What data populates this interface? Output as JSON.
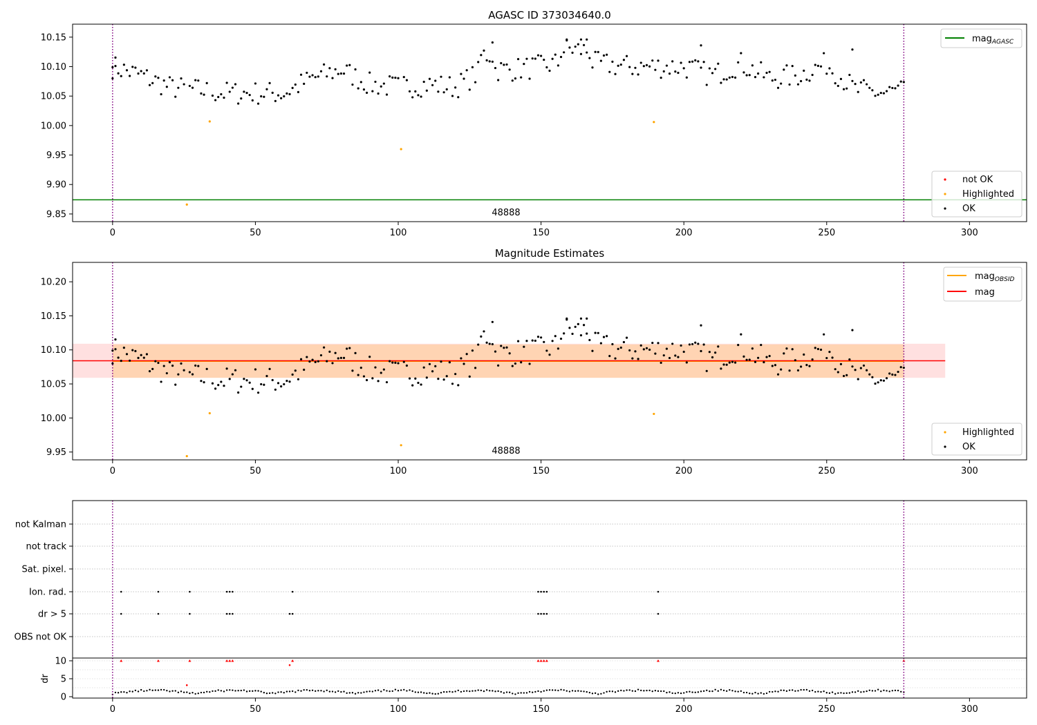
{
  "chart_data": [
    {
      "type": "scatter",
      "title": "AGASC ID 373034640.0",
      "xlabel": "",
      "ylabel": "",
      "xlim": [
        -14,
        320
      ],
      "ylim": [
        9.837,
        10.172
      ],
      "xticks": [
        0,
        50,
        100,
        150,
        200,
        250,
        300
      ],
      "yticks": [
        9.85,
        9.9,
        9.95,
        10.0,
        10.05,
        10.1,
        10.15
      ],
      "grid": false,
      "vlines": [
        0,
        277
      ],
      "hline": {
        "name": "mag_AGASC",
        "y": 9.874,
        "color": "#008000"
      },
      "annotation": {
        "text": "48888",
        "x": 138.5,
        "y": 9.85
      },
      "legend_top": {
        "placement": "top-right",
        "entries": [
          {
            "label": "mag",
            "sub": "AGASC",
            "color": "#008000"
          }
        ]
      },
      "legend_bottom": {
        "placement": "bottom-right",
        "entries": [
          {
            "label": "not OK",
            "color": "#ff0000"
          },
          {
            "label": "Highlighted",
            "color": "#ffa500"
          },
          {
            "label": "OK",
            "color": "#000000"
          }
        ]
      },
      "highlighted": [
        [
          26,
          9.866
        ],
        [
          34,
          10.007
        ],
        [
          101,
          9.96
        ],
        [
          189.5,
          10.006
        ]
      ]
    },
    {
      "type": "scatter",
      "title": "Magnitude Estimates",
      "xlabel": "",
      "ylabel": "",
      "xlim": [
        -14,
        320
      ],
      "ylim": [
        9.9385,
        10.2285
      ],
      "xticks": [
        0,
        50,
        100,
        150,
        200,
        250,
        300
      ],
      "yticks": [
        9.95,
        10.0,
        10.05,
        10.1,
        10.15,
        10.2
      ],
      "grid": false,
      "vlines": [
        0,
        277
      ],
      "mag_line": {
        "name": "mag",
        "y": 10.084,
        "band": [
          10.059,
          10.109
        ],
        "x": [
          -14,
          291.5
        ],
        "color": "#ff0000"
      },
      "mag_obsid": {
        "name": "mag_OBSID",
        "y": 10.0835,
        "band": [
          10.059,
          10.108
        ],
        "x": [
          0,
          277
        ],
        "color": "#ffa500"
      },
      "annotation": {
        "text": "48888",
        "x": 138.5,
        "y": 9.951
      },
      "legend_top": {
        "placement": "top-right",
        "entries": [
          {
            "label": "mag",
            "sub": "OBSID",
            "color": "#ffa500"
          },
          {
            "label": "mag",
            "sub": "",
            "color": "#ff0000"
          }
        ]
      },
      "legend_bottom": {
        "placement": "bottom-right",
        "entries": [
          {
            "label": "Highlighted",
            "color": "#ffa500"
          },
          {
            "label": "OK",
            "color": "#000000"
          }
        ]
      },
      "highlighted": [
        [
          26,
          9.944
        ],
        [
          34,
          10.007
        ],
        [
          101,
          9.96
        ],
        [
          189.5,
          10.006
        ]
      ]
    },
    {
      "type": "scatter",
      "title": "",
      "xlim": [
        -14,
        320
      ],
      "xticks": [
        0,
        50,
        100,
        150,
        200,
        250,
        300
      ],
      "flag_categories": [
        "not Kalman",
        "not track",
        "Sat. pixel.",
        "Ion. rad.",
        "dr > 5",
        "OBS not OK"
      ],
      "flags": {
        "Ion. rad.": [
          3,
          16,
          27,
          40,
          41,
          42,
          63,
          149,
          150,
          151,
          152,
          191
        ],
        "dr > 5": [
          3,
          16,
          27,
          40,
          41,
          42,
          62,
          63,
          149,
          150,
          151,
          152,
          191
        ]
      },
      "dr_ylabel": "dr",
      "dr_yticks": [
        0,
        5,
        10
      ],
      "dr_clipped": [
        [
          3,
          10
        ],
        [
          16,
          10
        ],
        [
          27,
          10
        ],
        [
          40,
          10
        ],
        [
          41,
          10
        ],
        [
          42,
          10
        ],
        [
          63,
          10
        ],
        [
          149,
          10
        ],
        [
          150,
          10
        ],
        [
          151,
          10
        ],
        [
          152,
          10
        ],
        [
          191,
          10
        ],
        [
          277,
          10
        ]
      ],
      "dr_red": [
        [
          26,
          3.2
        ],
        [
          62,
          8.8
        ]
      ],
      "vlines": [
        0,
        277
      ]
    }
  ]
}
